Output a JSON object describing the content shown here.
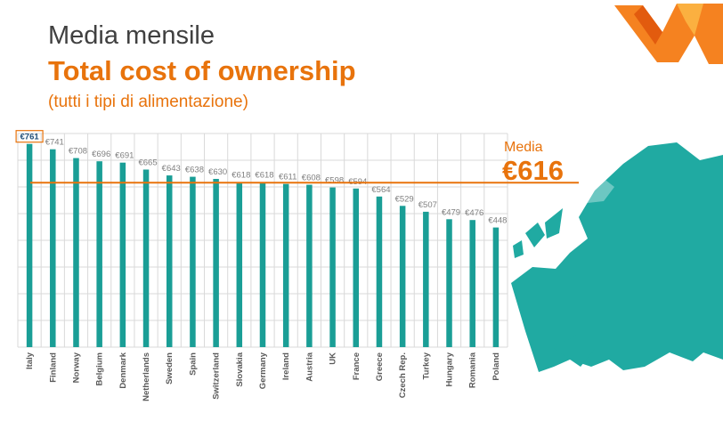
{
  "heading": {
    "line1": "Media mensile",
    "line2": "Total cost of ownership",
    "line3": "(tutti i tipi di alimentazione)"
  },
  "average": {
    "label": "Media",
    "value_label": "€616",
    "value": 616
  },
  "colors": {
    "bar": "#1a9e96",
    "accent": "#e8730c",
    "map": "#20aaa2",
    "grid": "#d9d9d9"
  },
  "chart_data": {
    "type": "bar",
    "categories": [
      "Italy",
      "Finland",
      "Norway",
      "Belgium",
      "Denmark",
      "Netherlands",
      "Sweden",
      "Spain",
      "Switzerland",
      "Slovakia",
      "Germany",
      "Ireland",
      "Austria",
      "UK",
      "France",
      "Greece",
      "Czech Rep.",
      "Turkey",
      "Hungary",
      "Romania",
      "Poland"
    ],
    "values": [
      761,
      741,
      708,
      696,
      691,
      665,
      643,
      638,
      630,
      618,
      618,
      611,
      608,
      598,
      594,
      564,
      529,
      507,
      479,
      476,
      448
    ],
    "data_labels": [
      "€761",
      "€741",
      "€708",
      "€696",
      "€691",
      "€665",
      "€643",
      "€638",
      "€630",
      "€618",
      "€618",
      "€611",
      "€608",
      "€598",
      "€594",
      "€564",
      "€529",
      "€507",
      "€479",
      "€476",
      "€448"
    ],
    "highlighted_index": 0,
    "reference_line": 616,
    "ylim": [
      0,
      800
    ],
    "grid": true
  }
}
